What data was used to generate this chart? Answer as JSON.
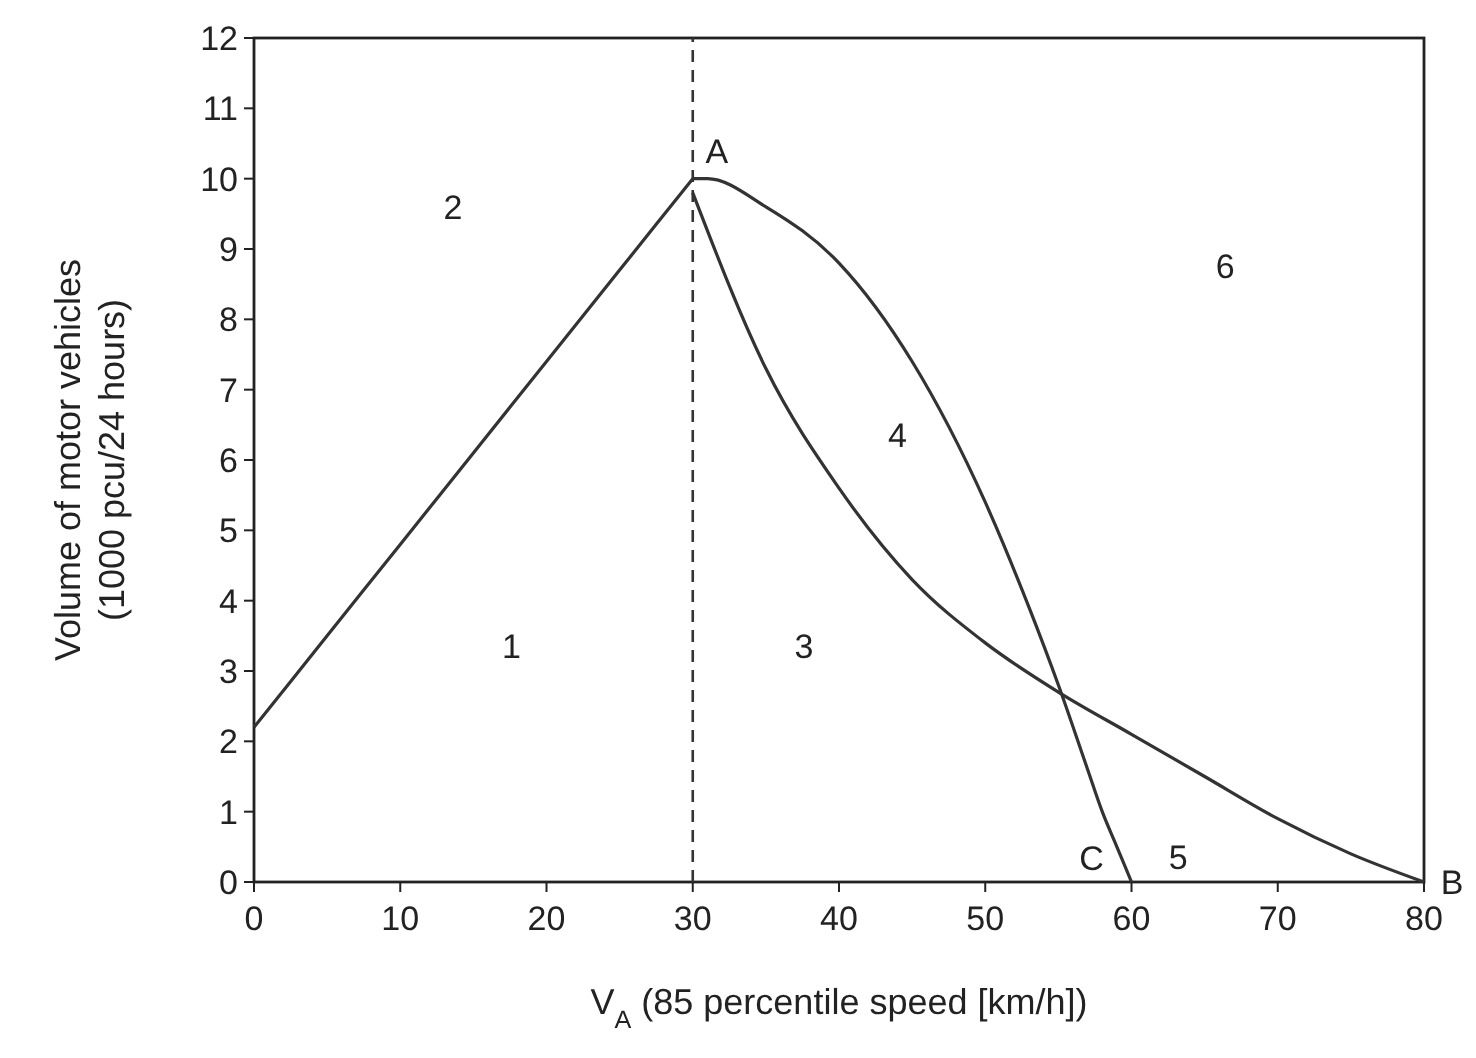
{
  "chart_data": {
    "type": "line",
    "xlabel": "V$_{A}$ (85 percentile speed [km/h])",
    "ylabel": "Volume of motor vehicles\n(1000 pcu/24 hours)",
    "xlim": [
      0,
      80
    ],
    "ylim": [
      0,
      12
    ],
    "xticks": [
      0,
      10,
      20,
      30,
      40,
      50,
      60,
      70,
      80
    ],
    "yticks": [
      0,
      1,
      2,
      3,
      4,
      5,
      6,
      7,
      8,
      9,
      10,
      11,
      12
    ],
    "grid": false,
    "marker": "none",
    "line_style": "solid",
    "series": [
      {
        "color": "#333333",
        "x": [
          0,
          5,
          10,
          15,
          20,
          25,
          30
        ],
        "values": [
          2.2,
          3.5,
          4.8,
          6.1,
          7.4,
          8.7,
          10
        ]
      },
      {
        "color": "#333333",
        "x": [
          30,
          31,
          35,
          40,
          45,
          50,
          53,
          55,
          57,
          58,
          59,
          60
        ],
        "values": [
          10,
          10,
          9.6,
          8.8,
          7.4,
          5.4,
          3.9,
          2.8,
          1.6,
          1.0,
          0.5,
          0
        ]
      },
      {
        "color": "#333333",
        "x": [
          30,
          35,
          40,
          45,
          50,
          55,
          60,
          65,
          70,
          75,
          80
        ],
        "values": [
          9.8,
          7.3,
          5.6,
          4.3,
          3.4,
          2.7,
          2.1,
          1.5,
          0.9,
          0.4,
          0
        ]
      }
    ],
    "ref_lines": [
      {
        "axis": "x",
        "value": 30,
        "color": "#333333",
        "line_style": "dashed"
      }
    ],
    "annotations": [
      {
        "text": "A",
        "x": 30,
        "y": 10
      },
      {
        "text": "B",
        "x": 80,
        "y": 0
      },
      {
        "text": "C",
        "x": 60,
        "y": 0
      },
      "1",
      "2",
      "3",
      "4",
      "5",
      "6"
    ]
  }
}
